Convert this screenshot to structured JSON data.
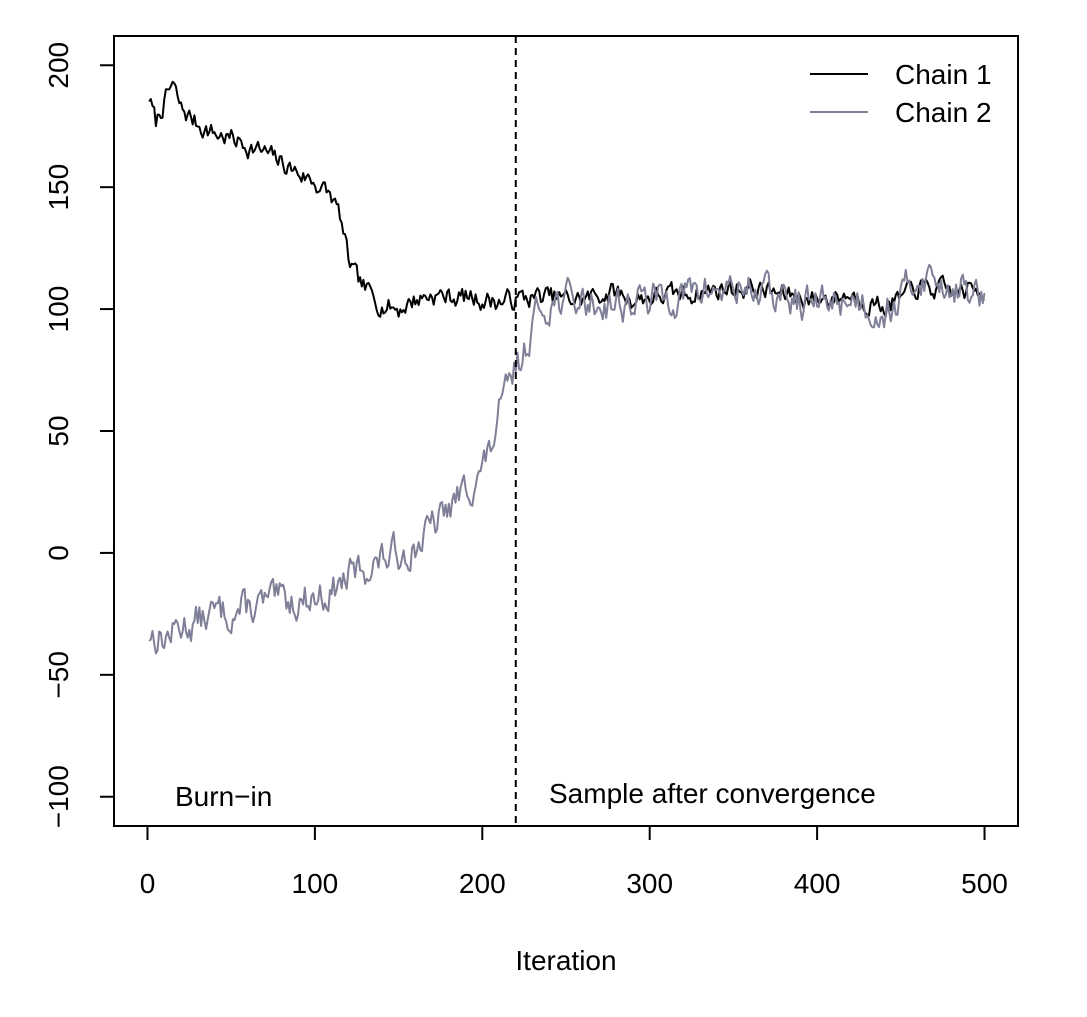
{
  "chart_data": {
    "type": "line",
    "title": "",
    "xlabel": "Iteration",
    "ylabel": "",
    "xlim": [
      -20,
      520
    ],
    "ylim": [
      -112,
      212
    ],
    "x_ticks": [
      0,
      100,
      200,
      300,
      400,
      500
    ],
    "x_tick_labels": [
      "0",
      "100",
      "200",
      "300",
      "400",
      "500"
    ],
    "y_ticks": [
      -100,
      -50,
      0,
      50,
      100,
      150,
      200
    ],
    "y_tick_labels": [
      "−100",
      "−50",
      "0",
      "50",
      "100",
      "150",
      "200"
    ],
    "grid": false,
    "legend_position": "top-right",
    "vline": {
      "x": 220,
      "style": "dashed",
      "color": "#000000"
    },
    "annotations": [
      {
        "text": "Burn−in",
        "x": 50,
        "y": -101
      },
      {
        "text": "Sample after convergence",
        "x": 350,
        "y": -100
      }
    ],
    "series": [
      {
        "name": "Chain 1",
        "color": "#000000",
        "anchors": [
          [
            1,
            187
          ],
          [
            5,
            176
          ],
          [
            10,
            185
          ],
          [
            15,
            192
          ],
          [
            20,
            182
          ],
          [
            30,
            176
          ],
          [
            40,
            172
          ],
          [
            50,
            170
          ],
          [
            60,
            167
          ],
          [
            70,
            164
          ],
          [
            80,
            160
          ],
          [
            90,
            156
          ],
          [
            100,
            152
          ],
          [
            110,
            146
          ],
          [
            115,
            138
          ],
          [
            120,
            120
          ],
          [
            125,
            112
          ],
          [
            130,
            108
          ],
          [
            140,
            102
          ],
          [
            150,
            100
          ],
          [
            160,
            104
          ],
          [
            170,
            106
          ],
          [
            180,
            105
          ],
          [
            190,
            105
          ],
          [
            200,
            104
          ],
          [
            210,
            103
          ],
          [
            220,
            104
          ],
          [
            230,
            105
          ],
          [
            240,
            105
          ],
          [
            250,
            104
          ],
          [
            260,
            104
          ],
          [
            270,
            106
          ],
          [
            280,
            107
          ],
          [
            290,
            104
          ],
          [
            300,
            105
          ],
          [
            320,
            106
          ],
          [
            340,
            108
          ],
          [
            360,
            109
          ],
          [
            380,
            106
          ],
          [
            400,
            104
          ],
          [
            420,
            106
          ],
          [
            440,
            101
          ],
          [
            450,
            104
          ],
          [
            460,
            109
          ],
          [
            480,
            107
          ],
          [
            500,
            108
          ]
        ],
        "noise": 3.5,
        "seed": 7
      },
      {
        "name": "Chain 2",
        "color": "#7f7f97",
        "anchors": [
          [
            1,
            -33
          ],
          [
            10,
            -35
          ],
          [
            20,
            -30
          ],
          [
            30,
            -28
          ],
          [
            40,
            -25
          ],
          [
            50,
            -24
          ],
          [
            60,
            -23
          ],
          [
            70,
            -21
          ],
          [
            80,
            -20
          ],
          [
            90,
            -19
          ],
          [
            100,
            -18
          ],
          [
            110,
            -16
          ],
          [
            120,
            -10
          ],
          [
            130,
            -6
          ],
          [
            140,
            -3
          ],
          [
            150,
            0
          ],
          [
            160,
            3
          ],
          [
            170,
            10
          ],
          [
            180,
            18
          ],
          [
            190,
            26
          ],
          [
            200,
            34
          ],
          [
            205,
            42
          ],
          [
            210,
            56
          ],
          [
            215,
            66
          ],
          [
            220,
            76
          ],
          [
            225,
            82
          ],
          [
            230,
            95
          ],
          [
            235,
            100
          ],
          [
            240,
            103
          ],
          [
            250,
            104
          ],
          [
            260,
            103
          ],
          [
            270,
            102
          ],
          [
            280,
            103
          ],
          [
            290,
            102
          ],
          [
            300,
            104
          ],
          [
            320,
            106
          ],
          [
            340,
            108
          ],
          [
            360,
            109
          ],
          [
            380,
            104
          ],
          [
            400,
            102
          ],
          [
            420,
            105
          ],
          [
            440,
            99
          ],
          [
            450,
            104
          ],
          [
            460,
            114
          ],
          [
            470,
            112
          ],
          [
            480,
            110
          ],
          [
            500,
            104
          ]
        ],
        "noise": 6,
        "seed": 13
      }
    ]
  }
}
